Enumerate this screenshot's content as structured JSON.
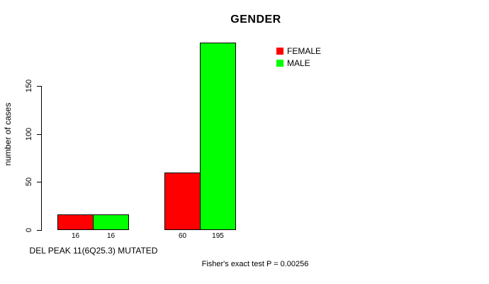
{
  "chart_data": {
    "type": "bar",
    "title": "GENDER",
    "ylabel": "number of cases",
    "xlabel": "",
    "categories": [
      "DEL PEAK 11(6Q25.3) MUTATED",
      ""
    ],
    "series": [
      {
        "name": "FEMALE",
        "color": "#ff0000",
        "values": [
          16,
          60
        ]
      },
      {
        "name": "MALE",
        "color": "#00ff00",
        "values": [
          16,
          195
        ]
      }
    ],
    "bar_value_labels": [
      [
        16,
        60
      ],
      [
        16,
        195
      ]
    ],
    "yticks": [
      0,
      50,
      100,
      150
    ],
    "ylim": [
      0,
      195
    ],
    "grid": false,
    "legend_position": "top-right",
    "bar_border_color": "#000000",
    "axis_color": "#000000",
    "background_color": "#ffffff",
    "annotation": "Fisher's exact test P = 0.00256"
  }
}
